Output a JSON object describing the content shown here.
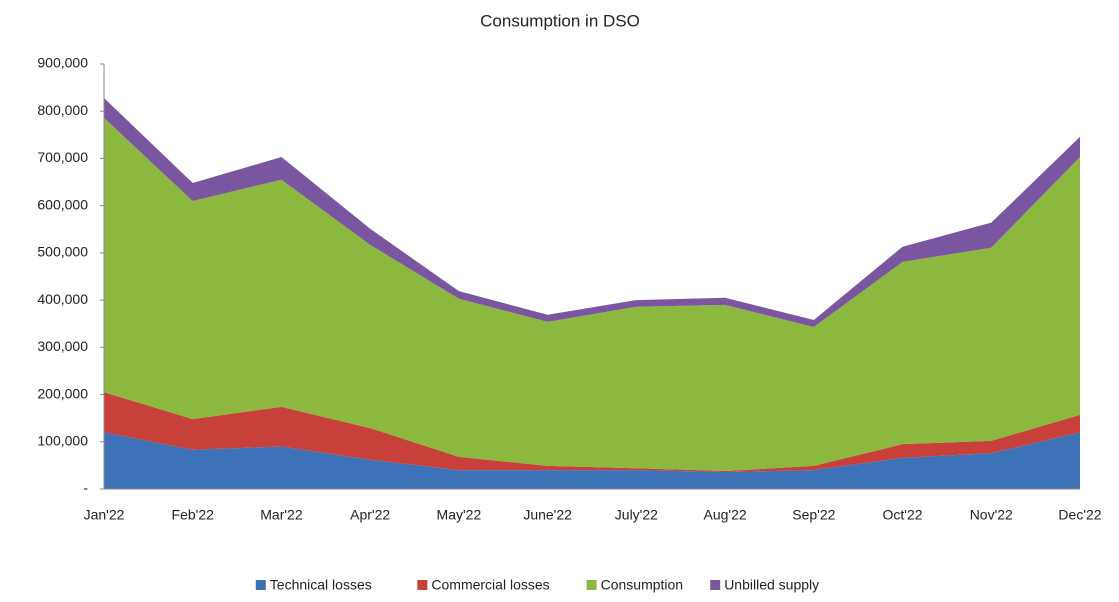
{
  "chart_data": {
    "type": "stacked_area",
    "title": "Consumption in DSO",
    "categories": [
      "Jan'22",
      "Feb'22",
      "Mar'22",
      "Apr'22",
      "May'22",
      "June'22",
      "July'22",
      "Aug'22",
      "Sep'22",
      "Oct'22",
      "Nov'22",
      "Dec'22"
    ],
    "series": [
      {
        "name": "Technical losses",
        "color": "#3d72b8",
        "values": [
          120000,
          83000,
          90000,
          62000,
          40000,
          40000,
          40000,
          36000,
          40000,
          66000,
          76000,
          120000
        ]
      },
      {
        "name": "Commercial losses",
        "color": "#c8403a",
        "values": [
          85000,
          65000,
          84000,
          67000,
          28000,
          9000,
          4000,
          2000,
          9000,
          29000,
          26000,
          37000
        ]
      },
      {
        "name": "Consumption",
        "color": "#8db840",
        "values": [
          581000,
          462000,
          481000,
          388000,
          335000,
          305000,
          342000,
          352000,
          294000,
          386000,
          409000,
          546000
        ]
      },
      {
        "name": "Unbilled supply",
        "color": "#7a55a0",
        "values": [
          42000,
          38000,
          48000,
          34000,
          16000,
          15000,
          14000,
          15000,
          15000,
          32000,
          53000,
          43000
        ]
      }
    ],
    "ylim": [
      0,
      900000
    ],
    "yticks": [
      {
        "value": 0,
        "label": "-"
      },
      {
        "value": 100000,
        "label": "100,000"
      },
      {
        "value": 200000,
        "label": "200,000"
      },
      {
        "value": 300000,
        "label": "300,000"
      },
      {
        "value": 400000,
        "label": "400,000"
      },
      {
        "value": 500000,
        "label": "500,000"
      },
      {
        "value": 600000,
        "label": "600,000"
      },
      {
        "value": 700000,
        "label": "700,000"
      },
      {
        "value": 800000,
        "label": "800,000"
      },
      {
        "value": 900000,
        "label": "900,000"
      }
    ],
    "legend": "bottom"
  }
}
